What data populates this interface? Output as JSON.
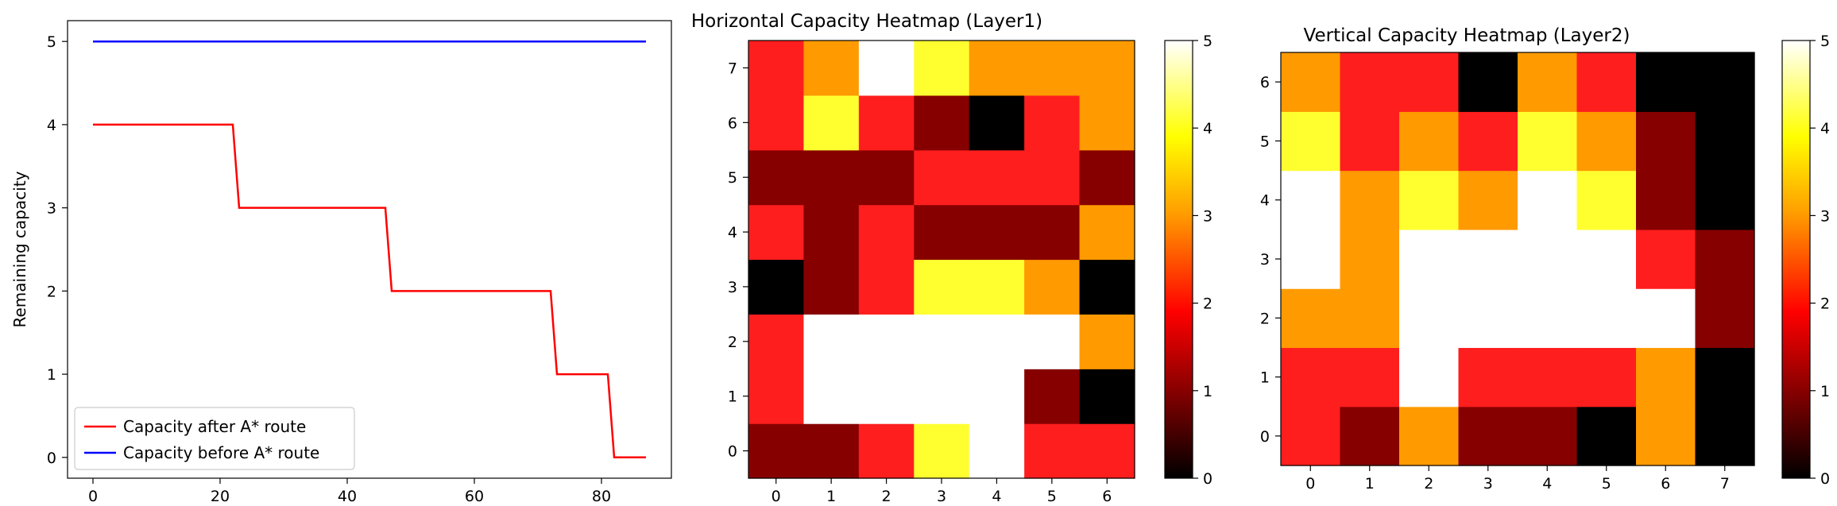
{
  "colors": {
    "after_route": "#ff0000",
    "before_route": "#0000ff",
    "heatmap_scale": [
      "#000000",
      "#870000",
      "#ff1e1e",
      "#ff9a00",
      "#ffff30",
      "#ffffff"
    ]
  },
  "chart_data": [
    {
      "type": "line",
      "title": "",
      "xlabel": "",
      "ylabel": "Remaining capacity",
      "xlim": [
        -4,
        91
      ],
      "ylim": [
        -0.25,
        5.25
      ],
      "xticks": [
        0,
        20,
        40,
        60,
        80
      ],
      "yticks": [
        0,
        1,
        2,
        3,
        4,
        5
      ],
      "grid": false,
      "legend_position": "lower-left",
      "series": [
        {
          "name": "Capacity after A* route",
          "color": "#ff0000",
          "x": [
            0,
            22,
            23,
            46,
            47,
            72,
            73,
            81,
            82,
            87
          ],
          "y": [
            4,
            4,
            3,
            3,
            2,
            2,
            1,
            1,
            0,
            0
          ]
        },
        {
          "name": "Capacity before A* route",
          "color": "#0000ff",
          "x": [
            0,
            87
          ],
          "y": [
            5,
            5
          ]
        }
      ]
    },
    {
      "type": "heatmap",
      "title": "Horizontal Capacity Heatmap (Layer1)",
      "xticks": [
        0,
        1,
        2,
        3,
        4,
        5,
        6
      ],
      "yticks": [
        0,
        1,
        2,
        3,
        4,
        5,
        6,
        7
      ],
      "colorbar_ticks": [
        0,
        1,
        2,
        3,
        4,
        5
      ],
      "vmin": 0,
      "vmax": 5,
      "colormap": "hot",
      "rows_bottom_to_top": [
        [
          1,
          1,
          2,
          4,
          5,
          2,
          2
        ],
        [
          2,
          5,
          5,
          5,
          5,
          1,
          0
        ],
        [
          2,
          5,
          5,
          5,
          5,
          5,
          3
        ],
        [
          0,
          1,
          2,
          4,
          4,
          3,
          0
        ],
        [
          2,
          1,
          2,
          1,
          1,
          1,
          3
        ],
        [
          1,
          1,
          1,
          2,
          2,
          2,
          1
        ],
        [
          2,
          4,
          2,
          1,
          0,
          2,
          3
        ],
        [
          2,
          3,
          5,
          4,
          3,
          3,
          3
        ]
      ]
    },
    {
      "type": "heatmap",
      "title": "Vertical Capacity Heatmap (Layer2)",
      "xticks": [
        0,
        1,
        2,
        3,
        4,
        5,
        6,
        7
      ],
      "yticks": [
        0,
        1,
        2,
        3,
        4,
        5,
        6
      ],
      "colorbar_ticks": [
        0,
        1,
        2,
        3,
        4,
        5
      ],
      "vmin": 0,
      "vmax": 5,
      "colormap": "hot",
      "rows_bottom_to_top": [
        [
          2,
          1,
          3,
          1,
          1,
          0,
          3,
          0
        ],
        [
          2,
          2,
          5,
          2,
          2,
          2,
          3,
          0
        ],
        [
          3,
          3,
          5,
          5,
          5,
          5,
          5,
          1
        ],
        [
          5,
          3,
          5,
          5,
          5,
          5,
          2,
          1
        ],
        [
          5,
          3,
          4,
          3,
          5,
          4,
          1,
          0
        ],
        [
          4,
          2,
          3,
          2,
          4,
          3,
          1,
          0
        ],
        [
          3,
          2,
          2,
          0,
          3,
          2,
          0,
          0
        ]
      ]
    }
  ]
}
